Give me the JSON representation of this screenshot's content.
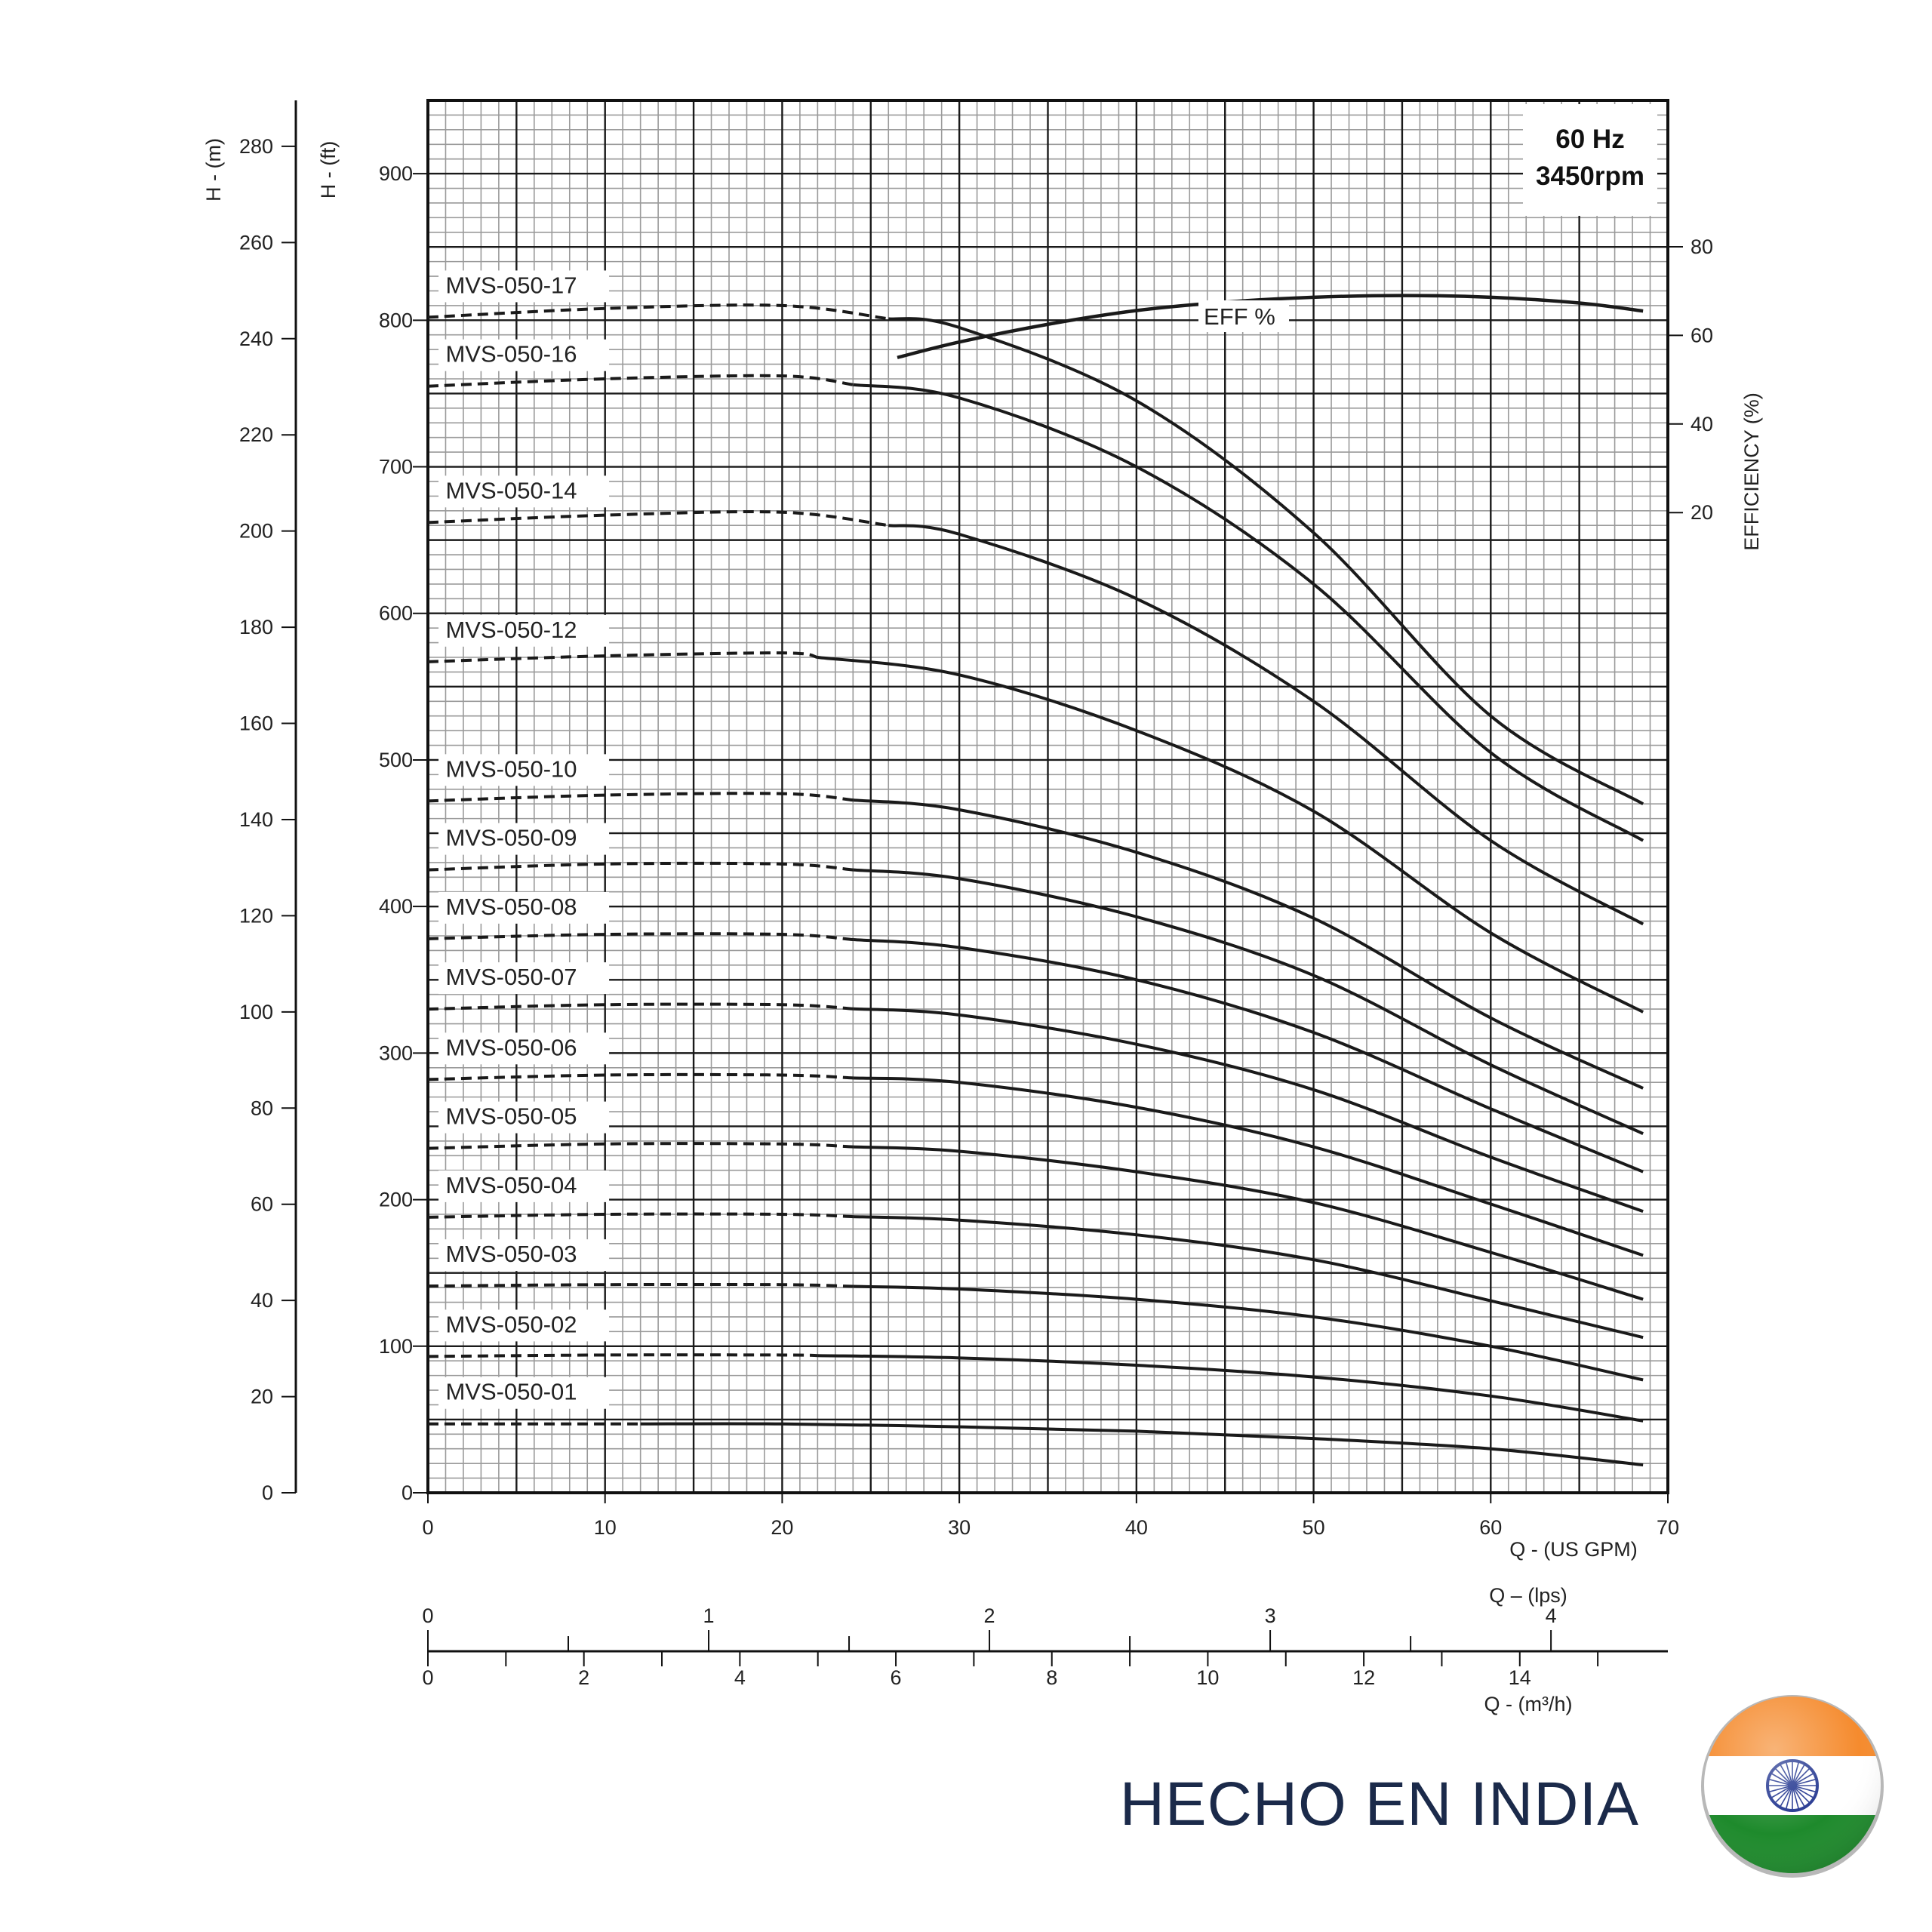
{
  "chart_data": {
    "type": "line",
    "title": "",
    "frequency_box": {
      "line1": "60 Hz",
      "line2": "3450rpm"
    },
    "x": {
      "label": "Q - (US GPM)",
      "range": [
        0,
        70
      ],
      "ticks": [
        0,
        10,
        20,
        30,
        40,
        50,
        60,
        70
      ],
      "grid_minor_step": 1
    },
    "y_ft": {
      "label": "H - (ft)",
      "range": [
        0,
        950
      ],
      "ticks": [
        0,
        100,
        200,
        300,
        400,
        500,
        600,
        700,
        800,
        900
      ],
      "grid_minor_step": 10
    },
    "y_m": {
      "label": "H - (m)",
      "ticks": [
        0,
        20,
        40,
        60,
        80,
        100,
        120,
        140,
        160,
        180,
        200,
        220,
        240,
        260,
        280
      ]
    },
    "y_eff": {
      "label": "EFFICIENCY (%)",
      "ticks": [
        20,
        40,
        60,
        80
      ]
    },
    "secondary_x": [
      {
        "label": "Q – (lps)",
        "ticks": [
          0,
          1,
          2,
          3,
          4
        ]
      },
      {
        "label": "Q - (m³/h)",
        "ticks": [
          0,
          2,
          4,
          6,
          8,
          10,
          12,
          14
        ]
      }
    ],
    "grid": true,
    "series": [
      {
        "name": "MVS-050-17",
        "dashed_until": 26,
        "x": [
          0,
          10,
          20,
          30,
          40,
          50,
          60,
          68.6
        ],
        "y": [
          802,
          808,
          810,
          795,
          745,
          655,
          530,
          470
        ]
      },
      {
        "name": "MVS-050-16",
        "dashed_until": 24,
        "x": [
          0,
          10,
          20,
          30,
          40,
          50,
          60,
          68.6
        ],
        "y": [
          755,
          760,
          762,
          747,
          700,
          620,
          505,
          445
        ]
      },
      {
        "name": "MVS-050-14",
        "dashed_until": 26,
        "x": [
          0,
          10,
          20,
          30,
          40,
          50,
          60,
          68.6
        ],
        "y": [
          662,
          667,
          669,
          654,
          610,
          540,
          445,
          388
        ]
      },
      {
        "name": "MVS-050-12",
        "dashed_until": 22,
        "x": [
          0,
          10,
          20,
          30,
          40,
          50,
          60,
          68.6
        ],
        "y": [
          567,
          571,
          573,
          558,
          520,
          465,
          382,
          328
        ]
      },
      {
        "name": "MVS-050-10",
        "dashed_until": 24,
        "x": [
          0,
          10,
          20,
          30,
          40,
          50,
          60,
          68.6
        ],
        "y": [
          472,
          476,
          477,
          466,
          437,
          392,
          324,
          276
        ]
      },
      {
        "name": "MVS-050-09",
        "dashed_until": 24,
        "x": [
          0,
          10,
          20,
          30,
          40,
          50,
          60,
          68.6
        ],
        "y": [
          425,
          429,
          429,
          419,
          393,
          353,
          292,
          245
        ]
      },
      {
        "name": "MVS-050-08",
        "dashed_until": 24,
        "x": [
          0,
          10,
          20,
          30,
          40,
          50,
          60,
          68.6
        ],
        "y": [
          378,
          381,
          381,
          372,
          350,
          314,
          262,
          219
        ]
      },
      {
        "name": "MVS-050-07",
        "dashed_until": 24,
        "x": [
          0,
          10,
          20,
          30,
          40,
          50,
          60,
          68.6
        ],
        "y": [
          330,
          333,
          333,
          326,
          306,
          275,
          229,
          192
        ]
      },
      {
        "name": "MVS-050-06",
        "dashed_until": 24,
        "x": [
          0,
          10,
          20,
          30,
          40,
          50,
          60,
          68.6
        ],
        "y": [
          282,
          285,
          285,
          280,
          263,
          236,
          197,
          162
        ]
      },
      {
        "name": "MVS-050-05",
        "dashed_until": 24,
        "x": [
          0,
          10,
          20,
          30,
          40,
          50,
          60,
          68.6
        ],
        "y": [
          235,
          238,
          238,
          233,
          219,
          198,
          164,
          132
        ]
      },
      {
        "name": "MVS-050-04",
        "dashed_until": 24,
        "x": [
          0,
          10,
          20,
          30,
          40,
          50,
          60,
          68.6
        ],
        "y": [
          188,
          190,
          190,
          186,
          176,
          159,
          131,
          106
        ]
      },
      {
        "name": "MVS-050-03",
        "dashed_until": 24,
        "x": [
          0,
          10,
          20,
          30,
          40,
          50,
          60,
          68.6
        ],
        "y": [
          141,
          142,
          142,
          139,
          132,
          120,
          100,
          77
        ]
      },
      {
        "name": "MVS-050-02",
        "dashed_until": 22,
        "x": [
          0,
          10,
          20,
          30,
          40,
          50,
          60,
          68.6
        ],
        "y": [
          93,
          94,
          94,
          92,
          87,
          79,
          66,
          49
        ]
      },
      {
        "name": "MVS-050-01",
        "dashed_until": 12,
        "x": [
          0,
          10,
          20,
          30,
          40,
          50,
          60,
          68.6
        ],
        "y": [
          47,
          47,
          47,
          45,
          42,
          37,
          30,
          19
        ]
      }
    ],
    "efficiency_curve": {
      "name": "EFF %",
      "x": [
        26.5,
        30,
        35,
        40,
        45,
        50,
        55,
        60,
        65,
        68.6
      ],
      "y": [
        55,
        58.5,
        62.5,
        65.6,
        67.5,
        68.6,
        69,
        68.6,
        67.3,
        65.5
      ]
    },
    "colors": {
      "curve": "#1a1a1a",
      "grid_minor": "#9a9a9a",
      "grid_major": "#1a1a1a"
    }
  },
  "footer": {
    "text": "HECHO EN INDIA",
    "flag": "india-flag-icon",
    "flag_colors": {
      "saffron": "#f58b2e",
      "white": "#ffffff",
      "green": "#1e8a2c",
      "chakra": "#1b2f8c"
    }
  }
}
